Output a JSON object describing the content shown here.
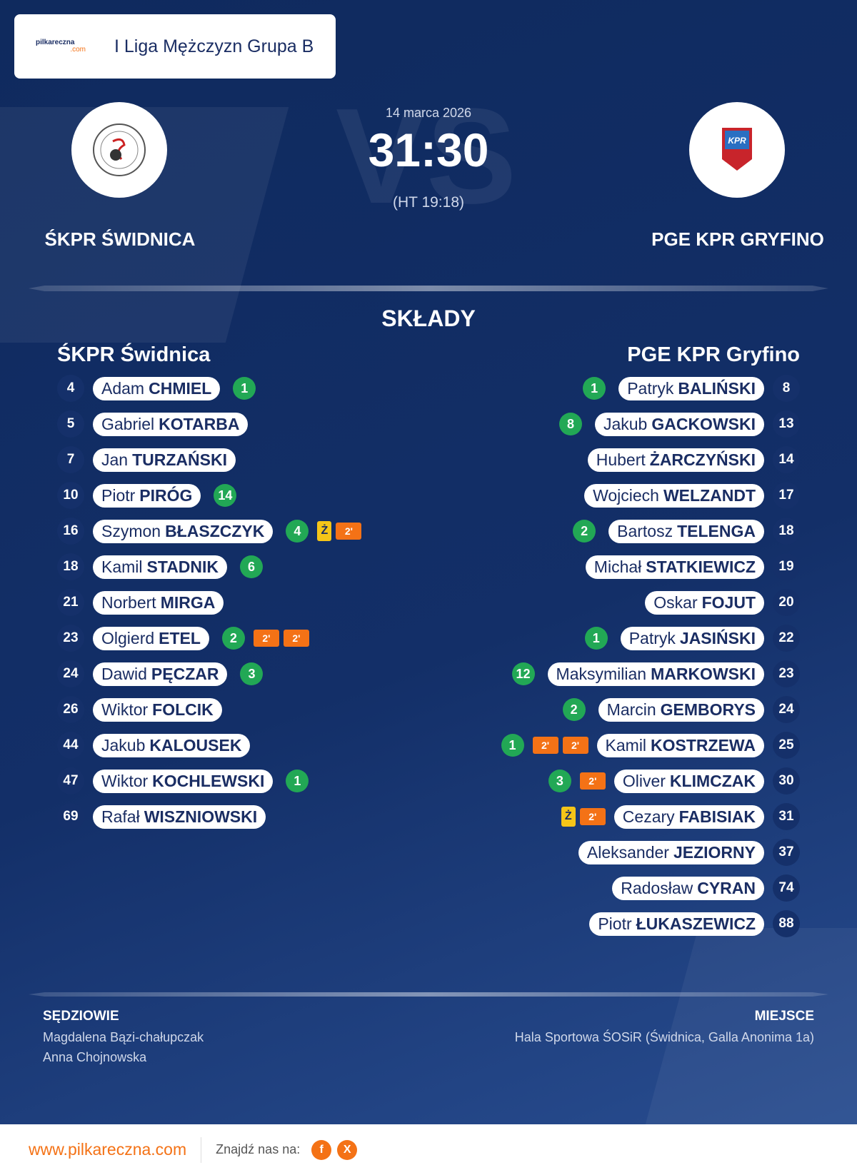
{
  "header": {
    "logo_main": "pilkareczna",
    "logo_sub": ".com",
    "league": "I Liga Mężczyzn Grupa B"
  },
  "match": {
    "watermark": "VS",
    "date": "14 marca 2026",
    "score": "31:30",
    "halftime": "(HT 19:18)",
    "home_team": "ŚKPR ŚWIDNICA",
    "away_team": "PGE KPR GRYFINO"
  },
  "lineups": {
    "title": "SKŁADY",
    "home": {
      "name": "ŚKPR Świdnica",
      "players": [
        {
          "number": 4,
          "first": "Adam",
          "last": "CHMIEL",
          "goals": 1,
          "cards": []
        },
        {
          "number": 5,
          "first": "Gabriel",
          "last": "KOTARBA",
          "goals": null,
          "cards": []
        },
        {
          "number": 7,
          "first": "Jan",
          "last": "TURZAŃSKI",
          "goals": null,
          "cards": []
        },
        {
          "number": 10,
          "first": "Piotr",
          "last": "PIRÓG",
          "goals": 14,
          "cards": []
        },
        {
          "number": 16,
          "first": "Szymon",
          "last": "BŁASZCZYK",
          "goals": 4,
          "cards": [
            "Ż",
            "2'"
          ]
        },
        {
          "number": 18,
          "first": "Kamil",
          "last": "STADNIK",
          "goals": 6,
          "cards": []
        },
        {
          "number": 21,
          "first": "Norbert",
          "last": "MIRGA",
          "goals": null,
          "cards": []
        },
        {
          "number": 23,
          "first": "Olgierd",
          "last": "ETEL",
          "goals": 2,
          "cards": [
            "2'",
            "2'"
          ]
        },
        {
          "number": 24,
          "first": "Dawid",
          "last": "PĘCZAR",
          "goals": 3,
          "cards": []
        },
        {
          "number": 26,
          "first": "Wiktor",
          "last": "FOLCIK",
          "goals": null,
          "cards": []
        },
        {
          "number": 44,
          "first": "Jakub",
          "last": "KALOUSEK",
          "goals": null,
          "cards": []
        },
        {
          "number": 47,
          "first": "Wiktor",
          "last": "KOCHLEWSKI",
          "goals": 1,
          "cards": []
        },
        {
          "number": 69,
          "first": "Rafał",
          "last": "WISZNIOWSKI",
          "goals": null,
          "cards": []
        }
      ]
    },
    "away": {
      "name": "PGE KPR Gryfino",
      "players": [
        {
          "number": 8,
          "first": "Patryk",
          "last": "BALIŃSKI",
          "goals": 1,
          "cards": []
        },
        {
          "number": 13,
          "first": "Jakub",
          "last": "GACKOWSKI",
          "goals": 8,
          "cards": []
        },
        {
          "number": 14,
          "first": "Hubert",
          "last": "ŻARCZYŃSKI",
          "goals": null,
          "cards": []
        },
        {
          "number": 17,
          "first": "Wojciech",
          "last": "WELZANDT",
          "goals": null,
          "cards": []
        },
        {
          "number": 18,
          "first": "Bartosz",
          "last": "TELENGA",
          "goals": 2,
          "cards": []
        },
        {
          "number": 19,
          "first": "Michał",
          "last": "STATKIEWICZ",
          "goals": null,
          "cards": []
        },
        {
          "number": 20,
          "first": "Oskar",
          "last": "FOJUT",
          "goals": null,
          "cards": []
        },
        {
          "number": 22,
          "first": "Patryk",
          "last": "JASIŃSKI",
          "goals": 1,
          "cards": []
        },
        {
          "number": 23,
          "first": "Maksymilian",
          "last": "MARKOWSKI",
          "goals": 12,
          "cards": []
        },
        {
          "number": 24,
          "first": "Marcin",
          "last": "GEMBORYS",
          "goals": 2,
          "cards": []
        },
        {
          "number": 25,
          "first": "Kamil",
          "last": "KOSTRZEWA",
          "goals": 1,
          "cards": [
            "2'",
            "2'"
          ]
        },
        {
          "number": 30,
          "first": "Oliver",
          "last": "KLIMCZAK",
          "goals": 3,
          "cards": [
            "2'"
          ]
        },
        {
          "number": 31,
          "first": "Cezary",
          "last": "FABISIAK",
          "goals": null,
          "cards": [
            "Ż",
            "2'"
          ]
        },
        {
          "number": 37,
          "first": "Aleksander",
          "last": "JEZIORNY",
          "goals": null,
          "cards": []
        },
        {
          "number": 74,
          "first": "Radosław",
          "last": "CYRAN",
          "goals": null,
          "cards": []
        },
        {
          "number": 88,
          "first": "Piotr",
          "last": "ŁUKASZEWICZ",
          "goals": null,
          "cards": []
        }
      ]
    }
  },
  "officials": {
    "referees_title": "SĘDZIOWIE",
    "referees": [
      "Magdalena Bązi-chałupczak",
      "Anna Chojnowska"
    ],
    "venue_title": "MIEJSCE",
    "venue": "Hala Sportowa ŚOSiR (Świdnica, Galla Anonima 1a)"
  },
  "footer": {
    "website": "www.pilkareczna.com",
    "find_us": "Znajdź nas na:",
    "social": [
      "f",
      "X"
    ]
  }
}
